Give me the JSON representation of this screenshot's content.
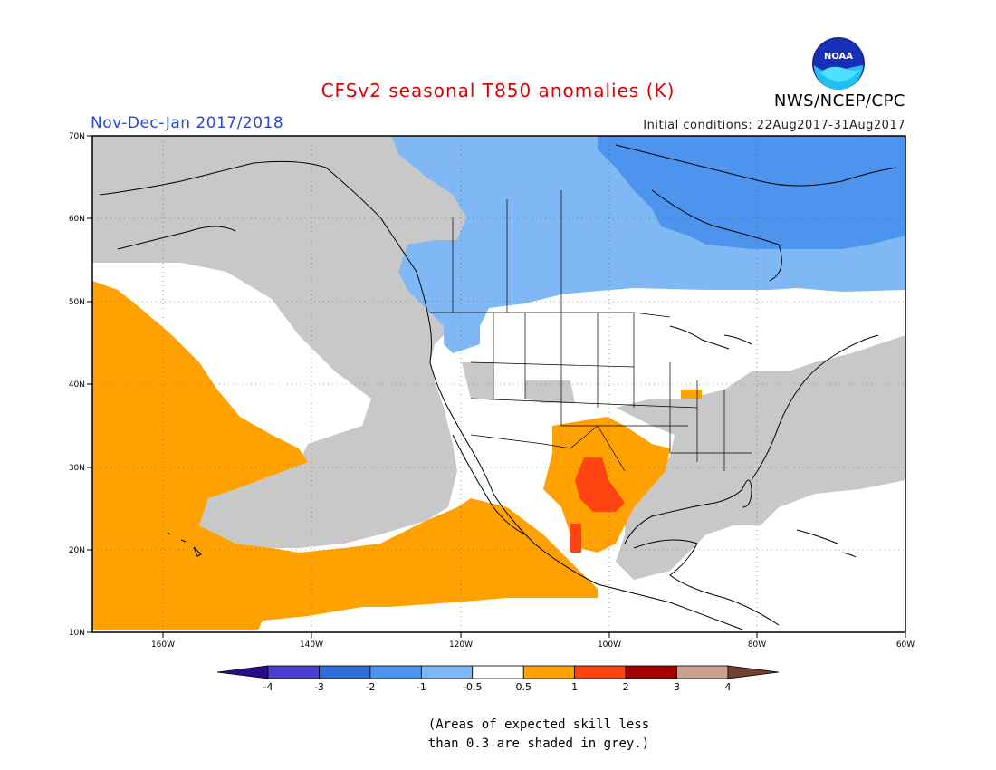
{
  "title": "CFSv2 seasonal T850 anomalies (K)",
  "season": "Nov-Dec-Jan 2017/2018",
  "initial_conditions": "Initial conditions: 22Aug2017-31Aug2017",
  "agency": "NWS/NCEP/CPC",
  "logo_text": "NOAA",
  "lat_labels": [
    "70N",
    "60N",
    "50N",
    "40N",
    "30N",
    "20N",
    "10N"
  ],
  "lon_labels": [
    "160W",
    "140W",
    "120W",
    "100W",
    "80W",
    "60W"
  ],
  "colorbar": {
    "labels": [
      "-4",
      "-3",
      "-2",
      "-1",
      "-0.5",
      "0.5",
      "1",
      "2",
      "3",
      "4"
    ],
    "colors": [
      "#2a0c8a",
      "#4c3fd0",
      "#2f6ed6",
      "#4d94ee",
      "#7fb8f5",
      "#ffffff",
      "#ffa100",
      "#ff4411",
      "#a50000",
      "#c8a090",
      "#704030"
    ]
  },
  "note_line1": "(Areas of expected skill less",
  "note_line2": "than 0.3 are shaded in grey.)",
  "colors": {
    "grey": "#c8c8c8",
    "orange": "#ffa100",
    "red": "#ff4411",
    "light_blue": "#7fb8f5",
    "blue": "#4d94ee",
    "white": "#ffffff"
  }
}
